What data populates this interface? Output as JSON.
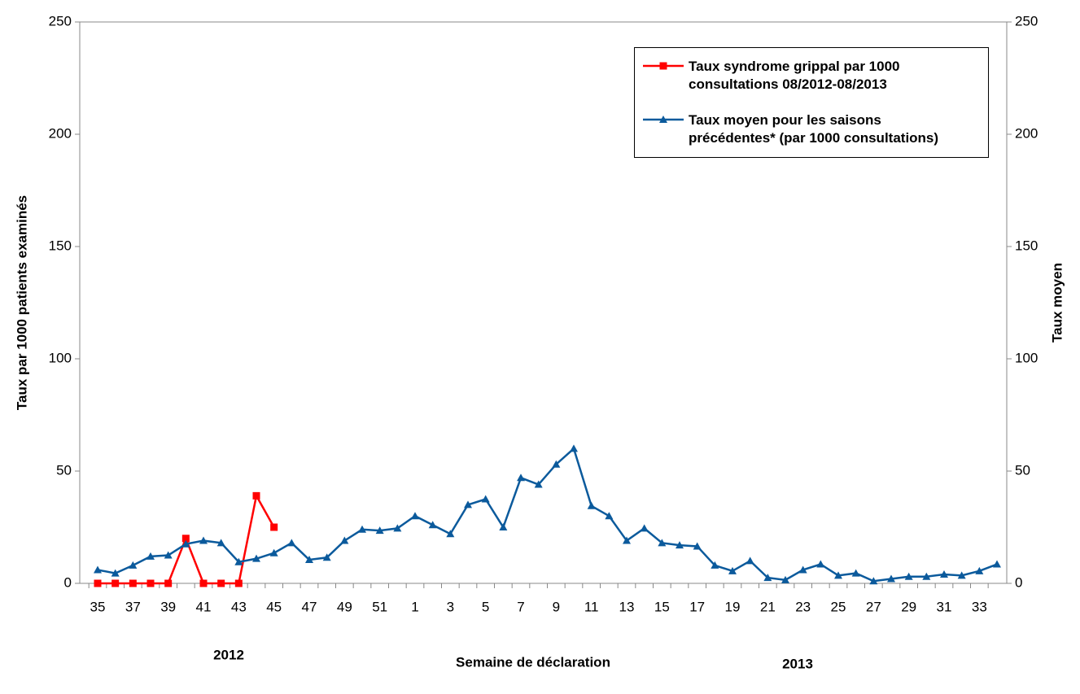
{
  "chart_data": {
    "type": "line",
    "y_label": "Taux par 1000 patients examinés",
    "y2_label": "Taux moyen",
    "x_label": "Semaine de déclaration",
    "annotations": [
      "2012",
      "2013"
    ],
    "categories": [
      "35",
      null,
      "37",
      null,
      "39",
      null,
      "41",
      null,
      "43",
      null,
      "45",
      null,
      "47",
      null,
      "49",
      null,
      "51",
      null,
      "1",
      null,
      "3",
      null,
      "5",
      null,
      "7",
      null,
      "9",
      null,
      "11",
      null,
      "13",
      null,
      "15",
      null,
      "17",
      null,
      "19",
      null,
      "21",
      null,
      "23",
      null,
      "25",
      null,
      "27",
      null,
      "29",
      null,
      "31",
      null,
      "33",
      null
    ],
    "series": [
      {
        "name": "Taux syndrome grippal par 1000 consultations 08/2012-08/2013",
        "color": "#ff0000",
        "marker": "square",
        "values": [
          0,
          0,
          0,
          0,
          0,
          20,
          0,
          0,
          0,
          39,
          25,
          null,
          null,
          null,
          null,
          null,
          null,
          null,
          null,
          null,
          null,
          null,
          null,
          null,
          null,
          null,
          null,
          null,
          null,
          null,
          null,
          null,
          null,
          null,
          null,
          null,
          null,
          null,
          null,
          null,
          null,
          null,
          null,
          null,
          null,
          null,
          null,
          null,
          null,
          null,
          null,
          null
        ]
      },
      {
        "name": "Taux moyen pour les saisons précédentes* (par 1000 consultations)",
        "color": "#0b5a9c",
        "marker": "triangle",
        "axis": "y2",
        "values": [
          6,
          4.5,
          8,
          12,
          12.5,
          17.5,
          19,
          18,
          9.5,
          11,
          13.5,
          18,
          10.5,
          11.5,
          19,
          24,
          23.5,
          24.5,
          30,
          26,
          22,
          35,
          37.5,
          25,
          47,
          44,
          53,
          60,
          34.5,
          30,
          19,
          24.5,
          18,
          17,
          16.5,
          8,
          5.5,
          10,
          2.5,
          1.5,
          6,
          8.5,
          3.5,
          4.5,
          1,
          2,
          3,
          3,
          4,
          3.5,
          5.5,
          8.5
        ]
      }
    ],
    "ylim": [
      0,
      250
    ],
    "yticks": [
      0,
      50,
      100,
      150,
      200,
      250
    ],
    "y2lim": [
      0,
      250
    ],
    "y2ticks": [
      0,
      50,
      100,
      150,
      200,
      250
    ],
    "legend": "upper right"
  }
}
